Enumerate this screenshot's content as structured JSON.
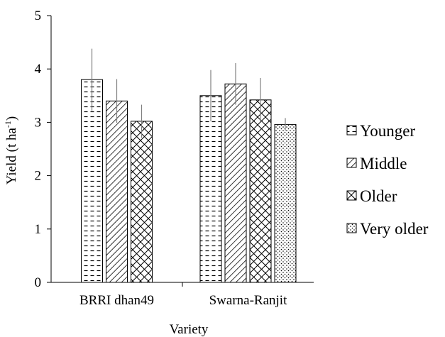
{
  "chart_data": {
    "type": "bar",
    "title": "",
    "xlabel": "Variety",
    "ylabel": "Yield (t ha",
    "ylabel_sup": "-1",
    "ylabel_close": ")",
    "ylim": [
      0,
      5
    ],
    "yticks": [
      "0",
      "1",
      "2",
      "3",
      "4",
      "5"
    ],
    "categories": [
      "BRRI dhan49",
      "Swarna-Ranjit"
    ],
    "grid": false,
    "legend_position": "right",
    "series": [
      {
        "name": "Younger",
        "pattern": "dashes",
        "values": [
          3.8,
          3.5
        ],
        "errors": [
          0.58,
          0.48
        ]
      },
      {
        "name": "Middle",
        "pattern": "diagonal",
        "values": [
          3.4,
          3.72
        ],
        "errors": [
          0.41,
          0.39
        ]
      },
      {
        "name": "Older",
        "pattern": "crosshatch",
        "values": [
          3.02,
          3.42
        ],
        "errors": [
          0.31,
          0.41
        ]
      },
      {
        "name": "Very older",
        "pattern": "dots",
        "values": [
          null,
          2.96
        ],
        "errors": [
          null,
          0.12
        ]
      }
    ]
  }
}
